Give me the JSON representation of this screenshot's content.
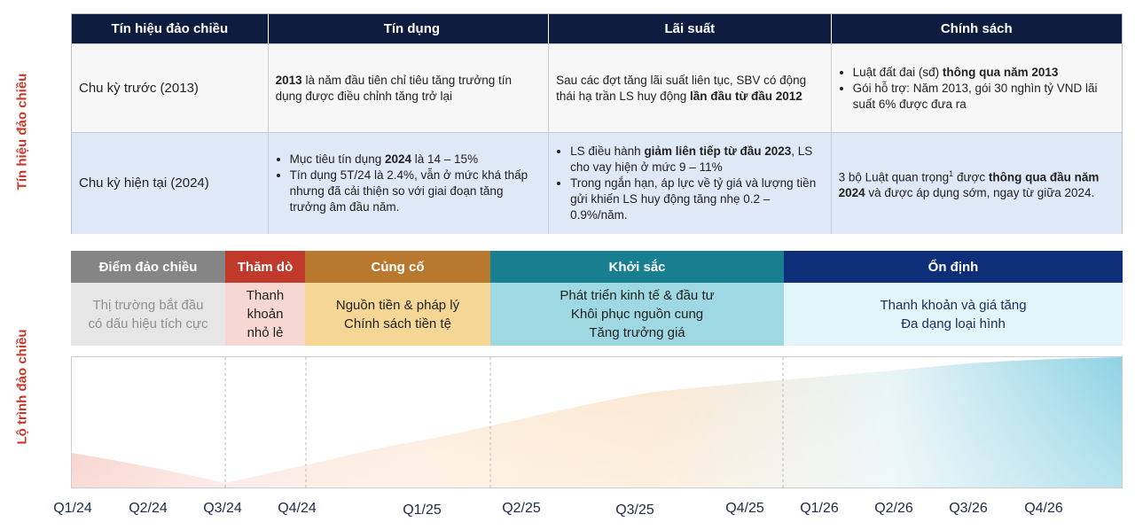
{
  "side_labels": {
    "top": "Tín hiệu đảo chiều",
    "bottom": "Lộ trình đảo chiều"
  },
  "table": {
    "headers": [
      "Tín hiệu đảo chiều",
      "Tín dụng",
      "Lãi suất",
      "Chính sách"
    ],
    "row1": {
      "label": "Chu kỳ trước (2013)",
      "credit": {
        "b1": "2013",
        "t1": " là năm đầu tiên chỉ tiêu tăng trưởng tín dụng được điều chỉnh tăng trở lại"
      },
      "rate": {
        "t1": "Sau các đợt tăng lãi suất liên tục, SBV có động thái hạ trần LS huy động ",
        "b1": "lần đầu từ đầu 2012"
      },
      "policy": {
        "item1_t": "Luật đất đai (sđ) ",
        "item1_b": "thông qua năm 2013",
        "item2_t": "Gói hỗ trợ: Năm 2013, gói 30 nghìn tỷ VND lãi suất 6% được đưa ra"
      }
    },
    "row2": {
      "label": "Chu kỳ hiện tại (2024)",
      "credit": {
        "item1_t": "Mục tiêu tín dụng ",
        "item1_b": "2024",
        "item1_t2": " là 14 – 15%",
        "item2_t": "Tín dụng 5T/24 là 2.4%, vẫn ở mức khá thấp nhưng đã cải thiện so với giai đoạn tăng trưởng âm đầu năm."
      },
      "rate": {
        "item1_t": "LS điều hành ",
        "item1_b": "giảm liên tiếp từ đầu 2023",
        "item1_t2": ", LS cho vay hiện ở mức 9 – 11%",
        "item2_t": "Trong ngắn hạn, áp lực về tỷ giá và lượng tiền gửi khiến LS huy động tăng nhẹ 0.2 – 0.9%/năm."
      },
      "policy": {
        "t1": "3 bộ Luật quan trọng",
        "sup": "1",
        "t2": " được ",
        "b1": "thông qua đầu năm 2024",
        "t3": " và được áp dụng sớm, ngay từ giữa 2024."
      }
    }
  },
  "stages": [
    {
      "title": "Điểm đảo chiều",
      "lines": [
        "Thị trường bắt đầu",
        "có dấu hiệu tích cực"
      ],
      "header_color": "#858585",
      "body_color": "#e6e6e6",
      "text_color": "#8f8f8f"
    },
    {
      "title": "Thăm dò",
      "lines": [
        "Thanh",
        "khoản",
        "nhỏ lẻ"
      ],
      "header_color": "#c0392b",
      "body_color": "#f6d7d2",
      "text_color": "#222222"
    },
    {
      "title": "Củng cố",
      "lines": [
        "Nguồn tiền & pháp lý",
        "Chính sách tiền tệ"
      ],
      "header_color": "#b8792f",
      "body_color": "#f6d694",
      "text_color": "#222222"
    },
    {
      "title": "Khởi sắc",
      "lines": [
        "Phát triển kinh tế & đầu tư",
        "Khôi phục nguồn cung",
        "Tăng trưởng giá"
      ],
      "header_color": "#177f8f",
      "body_color": "#9ed8e2",
      "text_color": "#222222"
    },
    {
      "title": "Ổn định",
      "lines": [
        "Thanh khoản và giá tăng",
        "Đa dạng loại hình"
      ],
      "header_color": "#0e2e7a",
      "body_color": "#e2f5fa",
      "text_color": "#1a2e5a"
    }
  ],
  "timeline": {
    "ticks": [
      "Q1/24",
      "Q2/24",
      "Q3/24",
      "Q4/24",
      "Q1/25",
      "Q2/25",
      "Q3/25",
      "Q4/25",
      "Q1/26",
      "Q2/26",
      "Q3/26",
      "Q4/26"
    ]
  }
}
